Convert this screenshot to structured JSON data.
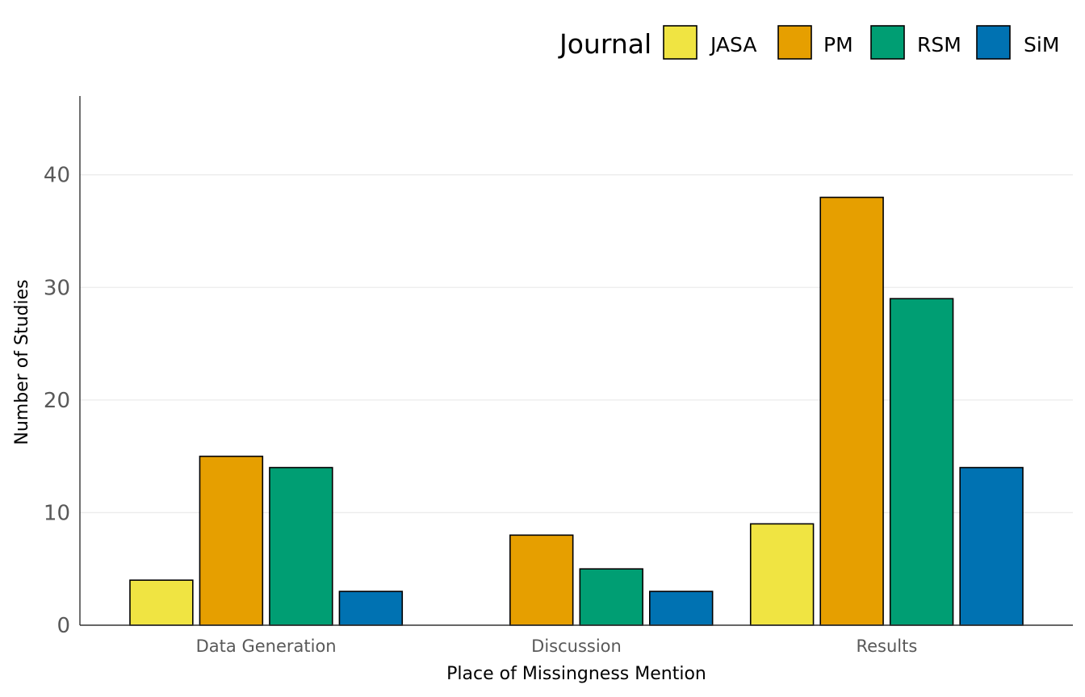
{
  "chart_data": {
    "type": "bar",
    "categories": [
      "Data Generation",
      "Discussion",
      "Results"
    ],
    "series": [
      {
        "name": "JASA",
        "color": "#F0E442",
        "values": [
          4,
          0,
          9
        ]
      },
      {
        "name": "PM",
        "color": "#E69F00",
        "values": [
          15,
          8,
          38
        ]
      },
      {
        "name": "RSM",
        "color": "#009E73",
        "values": [
          14,
          5,
          29
        ]
      },
      {
        "name": "SiM",
        "color": "#0072B2",
        "values": [
          3,
          3,
          14
        ]
      }
    ],
    "xlabel": "Place of Missingness Mention",
    "ylabel": "Number of Studies",
    "ylim": [
      0,
      47
    ],
    "yticks": [
      0,
      10,
      20,
      30,
      40
    ],
    "legend": {
      "title": "Journal",
      "position": "top-right"
    },
    "grid": true
  }
}
